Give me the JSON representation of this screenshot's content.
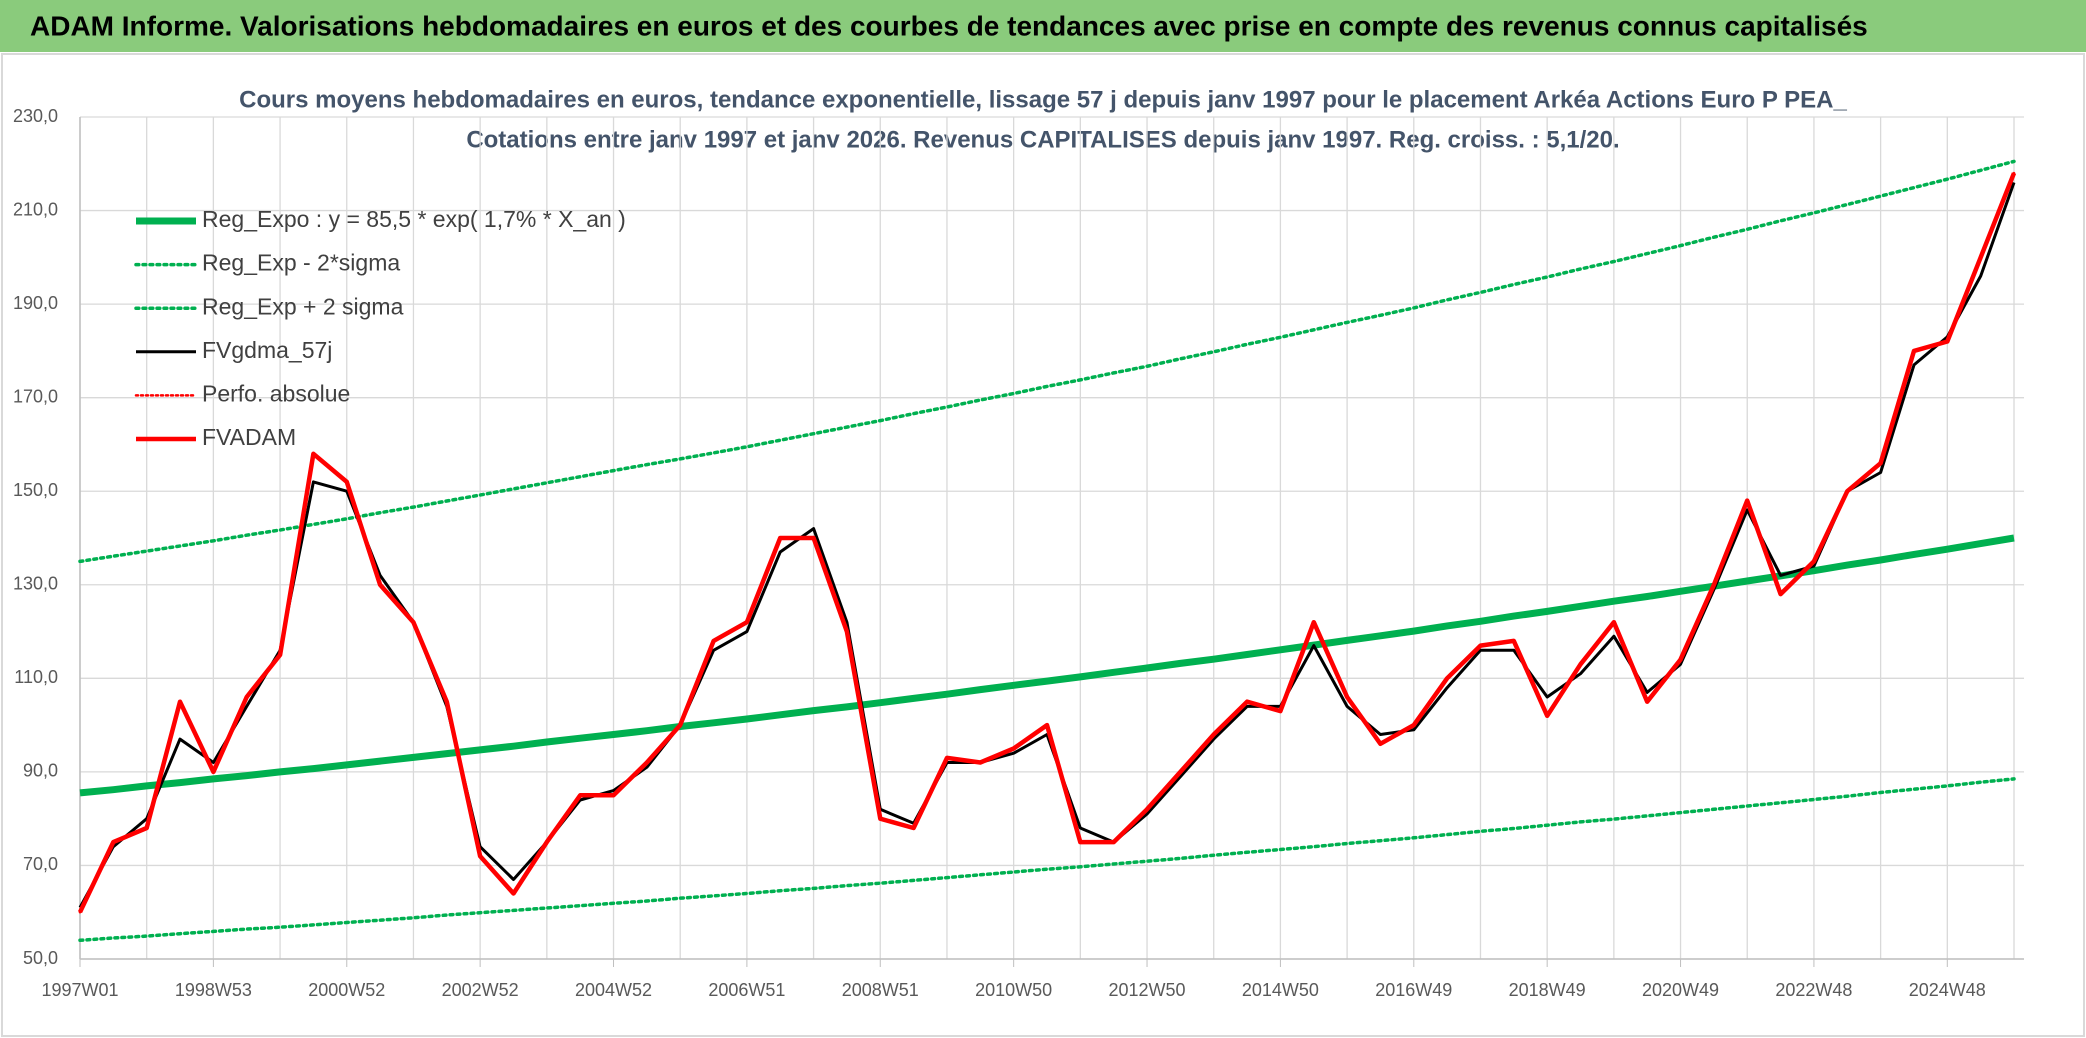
{
  "header": {
    "title": "ADAM Informe. Valorisations hebdomadaires en euros et des courbes de tendances avec prise en compte des revenus connus capitalisés"
  },
  "chart_data": {
    "type": "line",
    "title": "Cours moyens hebdomadaires en euros, tendance exponentielle, lissage 57 j depuis janv 1997 pour le placement Arkéa  Actions Euro P PEA_",
    "subtitle": "Cotations entre janv 1997 et janv 2026. Revenus CAPITALISES depuis janv 1997. Reg. croiss. : 5,1/20.",
    "x": [
      "1997W01",
      null,
      null,
      null,
      "1998W53",
      null,
      null,
      null,
      "2000W52",
      null,
      null,
      null,
      "2002W52",
      null,
      null,
      null,
      "2004W52",
      null,
      null,
      null,
      "2006W51",
      null,
      null,
      null,
      "2008W51",
      null,
      null,
      null,
      "2010W50",
      null,
      null,
      null,
      "2012W50",
      null,
      null,
      null,
      "2014W50",
      null,
      null,
      null,
      "2016W49",
      null,
      null,
      null,
      "2018W49",
      null,
      null,
      null,
      "2020W49",
      null,
      null,
      null,
      "2022W48",
      null,
      null,
      null,
      "2024W48",
      null,
      null
    ],
    "ylim": [
      50,
      230
    ],
    "yticks": [
      {
        "value": 50,
        "label": "50,0"
      },
      {
        "value": 70,
        "label": "70,0"
      },
      {
        "value": 90,
        "label": "90,0"
      },
      {
        "value": 110,
        "label": "110,0"
      },
      {
        "value": 130,
        "label": "130,0"
      },
      {
        "value": 150,
        "label": "150,0"
      },
      {
        "value": 170,
        "label": "170,0"
      },
      {
        "value": 190,
        "label": "190,0"
      },
      {
        "value": 210,
        "label": "210,0"
      },
      {
        "value": 230,
        "label": "230,0"
      }
    ],
    "grid": true,
    "legend": "upper left",
    "series": [
      {
        "name": "Reg_Expo : y = 85,5 * exp( 1,7% *  X_an )",
        "color": "#00b050",
        "style": "solid",
        "width": 7,
        "values": [
          85.5,
          86.2,
          87.0,
          87.7,
          88.5,
          89.2,
          90.0,
          90.7,
          91.5,
          92.3,
          93.1,
          93.9,
          94.7,
          95.5,
          96.4,
          97.2,
          98.0,
          98.8,
          99.7,
          100.5,
          101.3,
          102.2,
          103.1,
          103.9,
          104.8,
          105.7,
          106.6,
          107.6,
          108.5,
          109.4,
          110.3,
          111.3,
          112.2,
          113.2,
          114.1,
          115.1,
          116.1,
          117.1,
          118.1,
          119.1,
          120.1,
          121.2,
          122.2,
          123.3,
          124.3,
          125.4,
          126.5,
          127.5,
          128.6,
          129.7,
          130.8,
          131.9,
          133.0,
          134.2,
          135.3,
          136.5,
          137.6,
          138.8,
          140.0
        ]
      },
      {
        "name": "Reg_Exp - 2*sigma",
        "color": "#00b050",
        "style": "dotted",
        "width": 3.5,
        "values": [
          54.0,
          54.5,
          54.9,
          55.4,
          55.9,
          56.4,
          56.8,
          57.3,
          57.8,
          58.3,
          58.8,
          59.4,
          59.9,
          60.4,
          60.9,
          61.4,
          61.9,
          62.4,
          63.0,
          63.5,
          64.0,
          64.6,
          65.1,
          65.7,
          66.2,
          66.8,
          67.4,
          68.0,
          68.6,
          69.2,
          69.7,
          70.3,
          70.9,
          71.5,
          72.2,
          72.8,
          73.4,
          74.0,
          74.7,
          75.3,
          75.9,
          76.6,
          77.3,
          77.9,
          78.6,
          79.3,
          79.9,
          80.6,
          81.3,
          82.0,
          82.7,
          83.4,
          84.1,
          84.8,
          85.6,
          86.3,
          87.0,
          87.8,
          88.5
        ]
      },
      {
        "name": "Reg_Exp + 2 sigma",
        "color": "#00b050",
        "style": "dotted",
        "width": 3.5,
        "values": [
          135,
          136.1,
          137.2,
          138.3,
          139.4,
          140.6,
          141.7,
          142.9,
          144.1,
          145.4,
          146.6,
          147.9,
          149.2,
          150.5,
          151.8,
          153.1,
          154.4,
          155.7,
          156.9,
          158.2,
          159.5,
          160.9,
          162.3,
          163.7,
          165.1,
          166.6,
          168.0,
          169.5,
          170.9,
          172.4,
          173.8,
          175.3,
          176.7,
          178.3,
          179.8,
          181.4,
          182.9,
          184.5,
          186.1,
          187.6,
          189.2,
          190.9,
          192.5,
          194.2,
          195.8,
          197.5,
          199.1,
          200.8,
          202.5,
          204.3,
          206.0,
          207.8,
          209.5,
          211.3,
          213.1,
          214.9,
          216.7,
          218.6,
          220.5
        ]
      },
      {
        "name": "FVgdma_57j",
        "color": "#000000",
        "style": "solid",
        "width": 3,
        "values": [
          61,
          74,
          80,
          97,
          92,
          104,
          116,
          152,
          150,
          132,
          122,
          104,
          74,
          67,
          75,
          84,
          86,
          91,
          100,
          116,
          120,
          137,
          142,
          122,
          82,
          79,
          92,
          92,
          94,
          98,
          78,
          75,
          81,
          89,
          97,
          104,
          104,
          117,
          104,
          98,
          99,
          108,
          116,
          116,
          106,
          111,
          119,
          107,
          113,
          129,
          146,
          132,
          134,
          150,
          154,
          177,
          183,
          196,
          216
        ]
      },
      {
        "name": "Perfo. absolue",
        "color": "#ff0000",
        "style": "dotted",
        "width": 2.5,
        "values": [
          60,
          75,
          78,
          105,
          90,
          106,
          115,
          158,
          152,
          130,
          122,
          105,
          72,
          64,
          75,
          85,
          85,
          92,
          100,
          118,
          122,
          140,
          140,
          120,
          80,
          78,
          93,
          92,
          95,
          100,
          75,
          75,
          82,
          90,
          98,
          105,
          103,
          122,
          106,
          96,
          100,
          110,
          117,
          118,
          102,
          113,
          122,
          105,
          114,
          130,
          148,
          128,
          135,
          150,
          156,
          180,
          182,
          200,
          218
        ]
      },
      {
        "name": "FVADAM",
        "color": "#ff0000",
        "style": "solid",
        "width": 4.5,
        "values": [
          60,
          75,
          78,
          105,
          90,
          106,
          115,
          158,
          152,
          130,
          122,
          105,
          72,
          64,
          75,
          85,
          85,
          92,
          100,
          118,
          122,
          140,
          140,
          120,
          80,
          78,
          93,
          92,
          95,
          100,
          75,
          75,
          82,
          90,
          98,
          105,
          103,
          122,
          106,
          96,
          100,
          110,
          117,
          118,
          102,
          113,
          122,
          105,
          114,
          130,
          148,
          128,
          135,
          150,
          156,
          180,
          182,
          200,
          218
        ]
      }
    ]
  }
}
